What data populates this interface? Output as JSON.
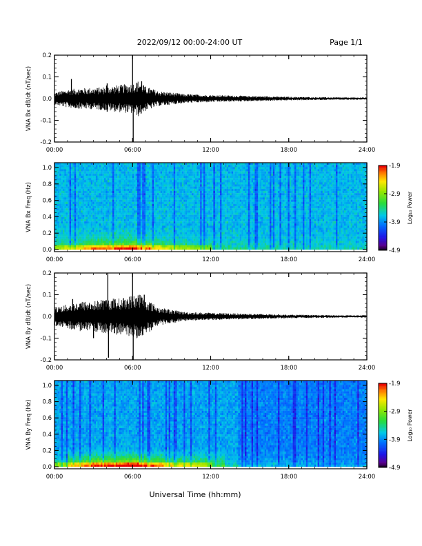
{
  "header": {
    "title": "2022/09/12  00:00-24:00 UT",
    "page_label": "Page 1/1"
  },
  "chart_data": [
    {
      "type": "line",
      "ylabel": "VNA Bx dB/dt (nT/sec)",
      "xlim": [
        0,
        24
      ],
      "ylim": [
        -0.2,
        0.2
      ],
      "yticks": [
        -0.2,
        -0.1,
        0.0,
        0.1,
        0.2
      ],
      "ytick_labels": [
        "-0.2",
        "-0.1",
        "0.0",
        "0.1",
        "0.2"
      ],
      "xtick_labels": [
        "00:00",
        "06:00",
        "12:00",
        "18:00",
        "24:00"
      ],
      "envelope": {
        "x_hours": [
          0,
          1,
          2,
          3,
          4,
          5,
          6,
          6.5,
          7,
          8,
          10,
          12,
          14,
          16,
          18,
          20,
          22,
          24
        ],
        "amplitude": [
          0.02,
          0.03,
          0.035,
          0.035,
          0.04,
          0.045,
          0.05,
          0.06,
          0.04,
          0.025,
          0.015,
          0.012,
          0.01,
          0.008,
          0.006,
          0.005,
          0.004,
          0.004
        ]
      },
      "spikes": [
        {
          "x": 1.3,
          "y": 0.09
        },
        {
          "x": 4.0,
          "y": 0.06
        },
        {
          "x": 4.05,
          "y": -0.06
        },
        {
          "x": 4.05,
          "y": 0.07
        },
        {
          "x": 6.0,
          "y": 0.22
        },
        {
          "x": 6.05,
          "y": -0.2
        },
        {
          "x": 6.7,
          "y": 0.08
        }
      ]
    },
    {
      "type": "heatmap",
      "ylabel": "VNA Bx Freq (Hz)",
      "colorbar_label": "Log₁₀ Power",
      "colorbar_ticks": [
        "-1.9",
        "-2.9",
        "-3.9",
        "-4.9"
      ],
      "colorbar_range": [
        -4.9,
        -1.9
      ],
      "xlim": [
        0,
        24
      ],
      "ylim": [
        0,
        1.0
      ],
      "ytick_labels": [
        "0.0",
        "0.2",
        "0.4",
        "0.6",
        "0.8",
        "1.0"
      ],
      "xtick_labels": [
        "00:00",
        "06:00",
        "12:00",
        "18:00",
        "24:00"
      ]
    },
    {
      "type": "line",
      "ylabel": "VNA By dB/dt (nT/sec)",
      "xlim": [
        0,
        24
      ],
      "ylim": [
        -0.2,
        0.2
      ],
      "yticks": [
        -0.2,
        -0.1,
        0.0,
        0.1,
        0.2
      ],
      "ytick_labels": [
        "-0.2",
        "-0.1",
        "0.0",
        "0.1",
        "0.2"
      ],
      "xtick_labels": [
        "00:00",
        "06:00",
        "12:00",
        "18:00",
        "24:00"
      ],
      "envelope": {
        "x_hours": [
          0,
          1,
          2,
          3,
          4,
          5,
          6,
          6.5,
          7,
          8,
          10,
          12,
          14,
          16,
          18,
          20,
          22,
          24
        ],
        "amplitude": [
          0.03,
          0.04,
          0.05,
          0.05,
          0.06,
          0.06,
          0.07,
          0.08,
          0.06,
          0.03,
          0.015,
          0.012,
          0.01,
          0.008,
          0.006,
          0.005,
          0.004,
          0.004
        ]
      },
      "spikes": [
        {
          "x": 1.4,
          "y": 0.08
        },
        {
          "x": 3.0,
          "y": -0.1
        },
        {
          "x": 4.1,
          "y": 0.2
        },
        {
          "x": 4.15,
          "y": -0.19
        },
        {
          "x": 6.0,
          "y": 0.2
        },
        {
          "x": 6.05,
          "y": -0.2
        },
        {
          "x": 6.9,
          "y": 0.1
        }
      ]
    },
    {
      "type": "heatmap",
      "ylabel": "VNA By Freq (Hz)",
      "colorbar_label": "Log₁₀ Power",
      "colorbar_ticks": [
        "-1.9",
        "-2.9",
        "-3.9",
        "-4.9"
      ],
      "colorbar_range": [
        -4.9,
        -1.9
      ],
      "xlim": [
        0,
        24
      ],
      "ylim": [
        0,
        1.0
      ],
      "ytick_labels": [
        "0.0",
        "0.2",
        "0.4",
        "0.6",
        "0.8",
        "1.0"
      ],
      "xtick_labels": [
        "00:00",
        "06:00",
        "12:00",
        "18:00",
        "24:00"
      ]
    }
  ],
  "xlabel": "Universal Time (hh:mm)"
}
